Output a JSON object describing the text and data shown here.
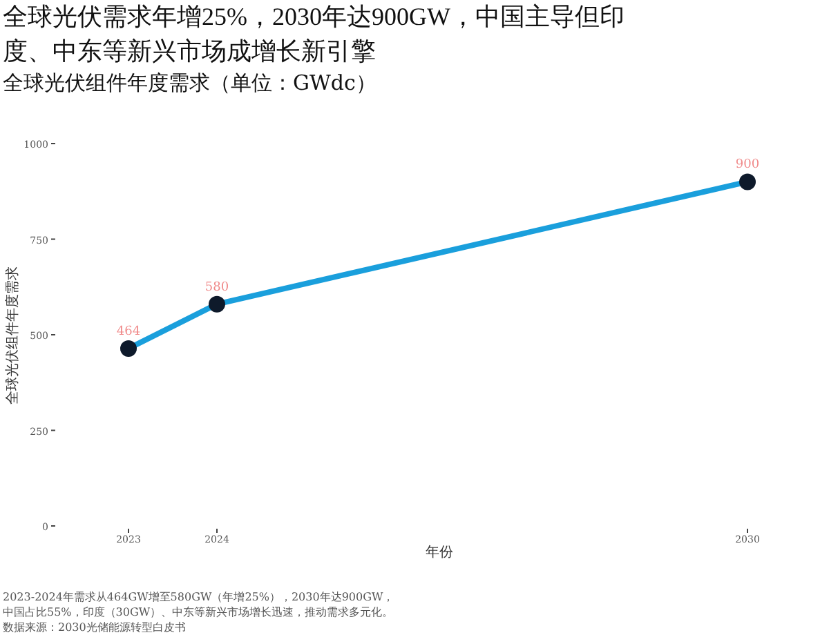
{
  "chart_data": {
    "type": "line",
    "title": "全球光伏需求年增25%，2030年达900GW，中国主导但印度、中东等新兴市场成增长新引擎",
    "subtitle": "全球光伏组件年度需求（单位：GWdc）",
    "xlabel": "年份",
    "ylabel": "全球光伏组件年度需求",
    "x": [
      2023,
      2024,
      2030
    ],
    "series": [
      {
        "color": "#1a9fdc",
        "values": [
          464,
          580,
          900
        ]
      }
    ],
    "xlim": [
      2023,
      2030
    ],
    "xticks": [
      2023,
      2024,
      2030
    ],
    "ylim": [
      0,
      1000
    ],
    "yticks": [
      0,
      250,
      500,
      750,
      1000
    ],
    "data_labels": true,
    "marker": "circle",
    "line_style": "solid",
    "grid": false,
    "annotations": [
      "2023-2024年需求从464GW增至580GW（年增25%），2030年达900GW，中国占比55%，印度（30GW）、中东等新兴市场增长迅速，推动需求多元化。",
      "数据来源：2030光储能源转型白皮书"
    ]
  }
}
